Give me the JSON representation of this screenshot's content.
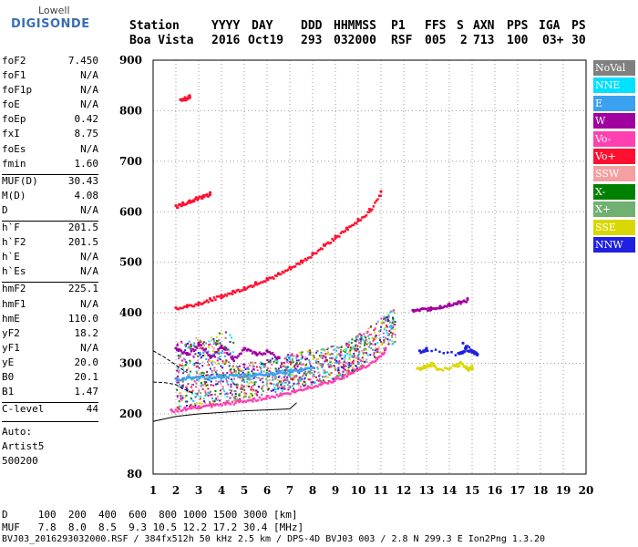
{
  "logo": {
    "top": "Lowell",
    "bottom": "DIGISONDE"
  },
  "header": {
    "labels": [
      "Station",
      "YYYY",
      "DAY",
      "DDD",
      "HHMMSS",
      "P1",
      "FFS",
      "S",
      "AXN",
      "PPS",
      "IGA",
      "PS"
    ],
    "values": [
      "Boa Vista",
      "2016",
      "Oct19",
      "293",
      "032000",
      "RSF",
      "005",
      "2",
      "713",
      "100",
      "03+",
      "30"
    ]
  },
  "sidebar": {
    "params": [
      {
        "label": "foF2",
        "value": "7.450"
      },
      {
        "label": "foF1",
        "value": "N/A"
      },
      {
        "label": "foF1p",
        "value": "N/A"
      },
      {
        "label": "foE",
        "value": "N/A"
      },
      {
        "label": "foEp",
        "value": "0.42"
      },
      {
        "label": "fxI",
        "value": "8.75"
      },
      {
        "label": "foEs",
        "value": "N/A"
      },
      {
        "label": "fmin",
        "value": "1.60"
      },
      {
        "label": "MUF(D)",
        "value": "30.43"
      },
      {
        "label": "M(D)",
        "value": "4.08"
      },
      {
        "label": "D",
        "value": "N/A"
      },
      {
        "label": "h`F",
        "value": "201.5"
      },
      {
        "label": "h`F2",
        "value": "201.5"
      },
      {
        "label": "h`E",
        "value": "N/A"
      },
      {
        "label": "h`Es",
        "value": "N/A"
      },
      {
        "label": "hmF2",
        "value": "225.1"
      },
      {
        "label": "hmF1",
        "value": "N/A"
      },
      {
        "label": "hmE",
        "value": "110.0"
      },
      {
        "label": "yF2",
        "value": "18.2"
      },
      {
        "label": "yF1",
        "value": "N/A"
      },
      {
        "label": "yE",
        "value": "20.0"
      },
      {
        "label": "B0",
        "value": "20.1"
      },
      {
        "label": "B1",
        "value": "1.47"
      },
      {
        "label": "C-level",
        "value": "44"
      }
    ],
    "auto": [
      "Auto:",
      "Artist5",
      "500200"
    ]
  },
  "legend": [
    {
      "label": "NoVal",
      "color": "#808080"
    },
    {
      "label": "NNE",
      "color": "#00e0ff"
    },
    {
      "label": "E",
      "color": "#3aa0f0"
    },
    {
      "label": "W",
      "color": "#a000a0"
    },
    {
      "label": "Vo-",
      "color": "#ff40b0"
    },
    {
      "label": "Vo+",
      "color": "#ff1030"
    },
    {
      "label": "SSW",
      "color": "#f4a0a0"
    },
    {
      "label": "X-",
      "color": "#008000"
    },
    {
      "label": "X+",
      "color": "#70b070"
    },
    {
      "label": "SSE",
      "color": "#d8d800"
    },
    {
      "label": "NNW",
      "color": "#2020e0"
    }
  ],
  "chart_data": {
    "type": "scatter",
    "x_ticks": [
      1,
      2,
      3,
      4,
      5,
      6,
      7,
      8,
      9,
      10,
      11,
      12,
      13,
      14,
      15,
      16,
      17,
      18,
      19,
      20
    ],
    "y_ticks": [
      80,
      200,
      300,
      400,
      500,
      600,
      700,
      800,
      900
    ],
    "xlim": [
      1,
      20
    ],
    "series": [
      {
        "color": "#ff1030",
        "x": [
          2.0,
          2.5,
          3.0,
          3.5,
          4.0,
          4.5,
          5.0,
          5.5,
          6.0,
          6.5,
          7.0,
          7.5,
          8.0,
          8.5,
          9.0,
          9.5,
          10.0,
          10.5,
          11.0
        ],
        "y": [
          410,
          415,
          420,
          428,
          435,
          443,
          450,
          460,
          468,
          478,
          490,
          503,
          518,
          535,
          552,
          568,
          585,
          605,
          640
        ]
      },
      {
        "color": "#ff1030",
        "x": [
          2.0,
          2.3,
          2.6,
          2.9,
          3.2,
          3.5
        ],
        "y": [
          612,
          618,
          622,
          628,
          632,
          638
        ]
      },
      {
        "color": "#ff1030",
        "x": [
          2.2,
          2.4,
          2.6
        ],
        "y": [
          822,
          826,
          830
        ]
      },
      {
        "color": "#a000a0",
        "x": [
          12.4,
          12.8,
          13.2,
          13.6,
          14.0,
          14.4,
          14.8
        ],
        "y": [
          405,
          408,
          410,
          413,
          418,
          422,
          428
        ]
      },
      {
        "color": "#3aa0f0",
        "x": [
          2.0,
          2.5,
          3.0,
          3.5,
          4.0,
          4.5,
          5.0,
          5.5,
          6.0,
          6.5,
          7.0,
          7.5,
          8.0
        ],
        "y": [
          270,
          272,
          273,
          275,
          276,
          277,
          278,
          279,
          281,
          283,
          286,
          289,
          292
        ]
      },
      {
        "color": "#ff40b0",
        "x": [
          1.8,
          2.4,
          3.0,
          3.6,
          4.2,
          4.8,
          5.4,
          6.0,
          6.6,
          7.2,
          7.8,
          8.4,
          9.0,
          9.6,
          10.2,
          10.8,
          11.2
        ],
        "y": [
          208,
          212,
          215,
          218,
          222,
          226,
          230,
          235,
          240,
          246,
          254,
          262,
          270,
          282,
          295,
          310,
          330
        ]
      },
      {
        "color": "#d8d800",
        "x": [
          12.6,
          12.9,
          13.2,
          13.5,
          14.2,
          14.5,
          14.8,
          15.0
        ],
        "y": [
          290,
          295,
          300,
          288,
          296,
          302,
          290,
          295
        ]
      },
      {
        "color": "#2020e0",
        "x": [
          12.7,
          13.0,
          14.4,
          14.7,
          15.0,
          15.2,
          14.6
        ],
        "y": [
          325,
          330,
          320,
          330,
          325,
          318,
          340
        ]
      },
      {
        "color": "#a000a0",
        "x": [
          2.0,
          2.5,
          3.0,
          3.5,
          4.0,
          4.5,
          5.0,
          5.5,
          6.0,
          6.5
        ],
        "y": [
          330,
          320,
          340,
          315,
          335,
          310,
          330,
          320,
          325,
          312
        ]
      }
    ]
  },
  "footer": {
    "line1": "D     100  200  400  600  800 1000 1500 3000 [km]",
    "line2": "MUF   7.8  8.0  8.5  9.3 10.5 12.2 17.2 30.4 [MHz]",
    "line3": "BVJ03_2016293032000.RSF / 384fx512h 50 kHz 2.5 km / DPS-4D BVJ03 003 / 2.8 N 299.3 E Ion2Png 1.3.20"
  }
}
